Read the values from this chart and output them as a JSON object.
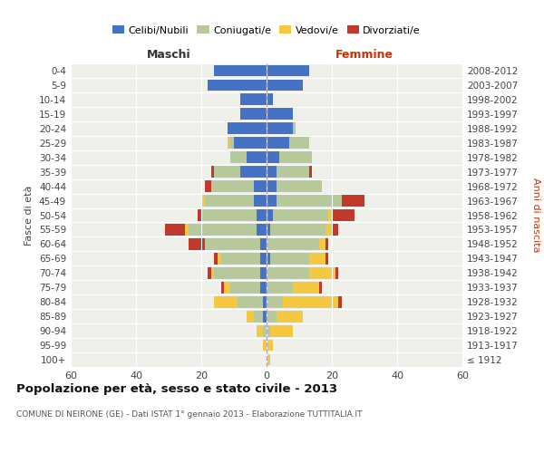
{
  "age_groups": [
    "100+",
    "95-99",
    "90-94",
    "85-89",
    "80-84",
    "75-79",
    "70-74",
    "65-69",
    "60-64",
    "55-59",
    "50-54",
    "45-49",
    "40-44",
    "35-39",
    "30-34",
    "25-29",
    "20-24",
    "15-19",
    "10-14",
    "5-9",
    "0-4"
  ],
  "birth_years": [
    "≤ 1912",
    "1913-1917",
    "1918-1922",
    "1923-1927",
    "1928-1932",
    "1933-1937",
    "1938-1942",
    "1943-1947",
    "1948-1952",
    "1953-1957",
    "1958-1962",
    "1963-1967",
    "1968-1972",
    "1973-1977",
    "1978-1982",
    "1983-1987",
    "1988-1992",
    "1993-1997",
    "1998-2002",
    "2003-2007",
    "2008-2012"
  ],
  "colors": {
    "celibi": "#4472c4",
    "coniugati": "#b5c99a",
    "vedovi": "#f5c842",
    "divorziati": "#c0392b",
    "background": "#f0f0eb"
  },
  "maschi": {
    "celibi": [
      0,
      0,
      0,
      1,
      1,
      2,
      2,
      2,
      2,
      3,
      3,
      4,
      4,
      8,
      6,
      10,
      12,
      8,
      8,
      18,
      16
    ],
    "coniugati": [
      0,
      0,
      1,
      3,
      8,
      9,
      14,
      12,
      17,
      21,
      17,
      15,
      13,
      8,
      5,
      1,
      0,
      0,
      0,
      0,
      0
    ],
    "vedovi": [
      0,
      1,
      2,
      2,
      7,
      2,
      1,
      1,
      0,
      1,
      0,
      1,
      0,
      0,
      0,
      1,
      0,
      0,
      0,
      0,
      0
    ],
    "divorziati": [
      0,
      0,
      0,
      0,
      0,
      1,
      1,
      1,
      5,
      6,
      1,
      0,
      2,
      1,
      0,
      0,
      0,
      0,
      0,
      0,
      0
    ]
  },
  "femmine": {
    "celibi": [
      0,
      0,
      0,
      0,
      0,
      0,
      0,
      1,
      0,
      1,
      2,
      3,
      3,
      3,
      4,
      7,
      8,
      8,
      2,
      11,
      13
    ],
    "coniugati": [
      0,
      0,
      1,
      3,
      5,
      8,
      13,
      12,
      16,
      17,
      17,
      20,
      14,
      10,
      10,
      6,
      1,
      0,
      0,
      0,
      0
    ],
    "vedovi": [
      1,
      2,
      7,
      8,
      17,
      8,
      8,
      5,
      2,
      2,
      1,
      0,
      0,
      0,
      0,
      0,
      0,
      0,
      0,
      0,
      0
    ],
    "divorziati": [
      0,
      0,
      0,
      0,
      1,
      1,
      1,
      1,
      1,
      2,
      7,
      7,
      0,
      1,
      0,
      0,
      0,
      0,
      0,
      0,
      0
    ]
  },
  "xlim": 60,
  "title": "Popolazione per età, sesso e stato civile - 2013",
  "subtitle": "COMUNE DI NEIRONE (GE) - Dati ISTAT 1° gennaio 2013 - Elaborazione TUTTITALIA.IT",
  "ylabel_left": "Fasce di età",
  "ylabel_right": "Anni di nascita",
  "xlabel_left": "Maschi",
  "xlabel_right": "Femmine",
  "legend_labels": [
    "Celibi/Nubili",
    "Coniugati/e",
    "Vedovi/e",
    "Divorziati/e"
  ]
}
